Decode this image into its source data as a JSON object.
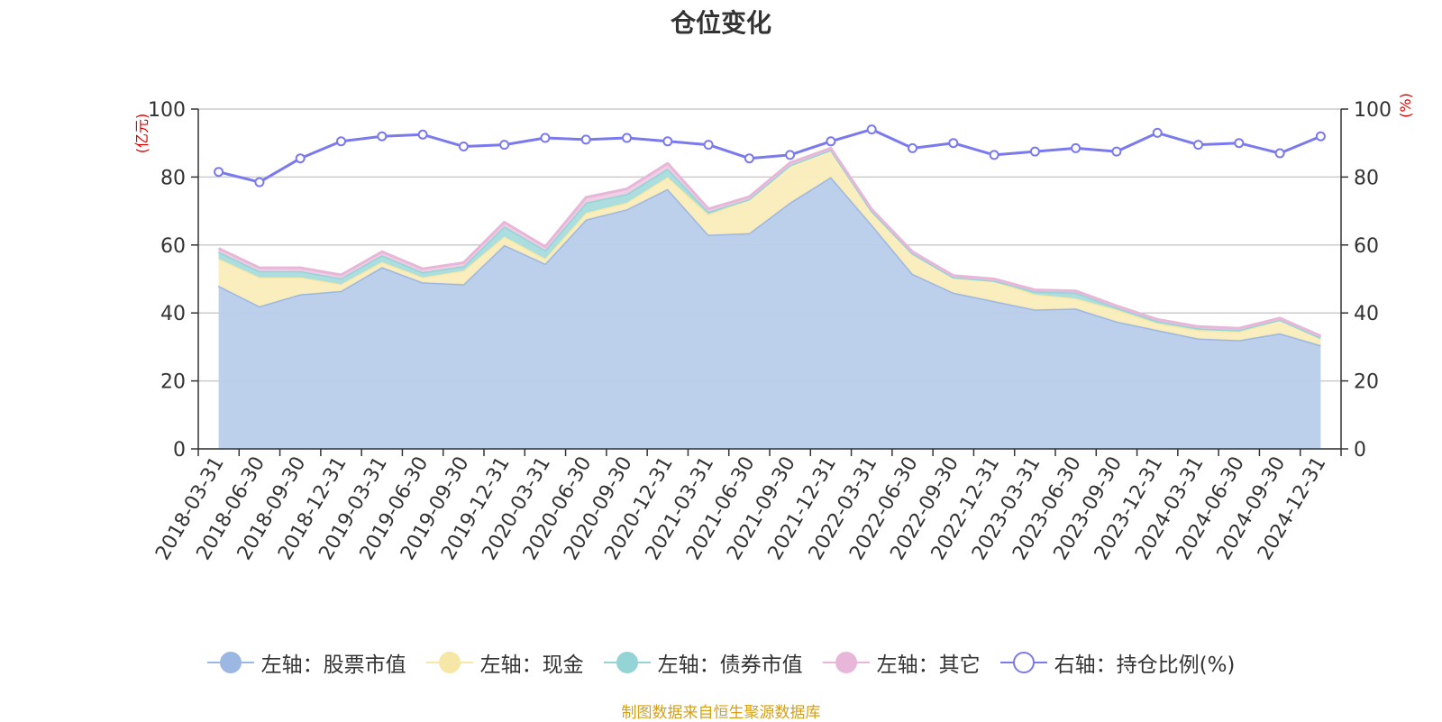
{
  "chart_data": {
    "type": "area",
    "title": "仓位变化",
    "left_axis_unit": "(亿元)",
    "right_axis_unit": "(%)",
    "left_ylim": [
      0,
      100
    ],
    "right_ylim": [
      0,
      100
    ],
    "left_ticks": [
      0,
      20,
      40,
      60,
      80,
      100
    ],
    "right_ticks": [
      0,
      20,
      40,
      60,
      80,
      100
    ],
    "categories": [
      "2018-03-31",
      "2018-06-30",
      "2018-09-30",
      "2018-12-31",
      "2019-03-31",
      "2019-06-30",
      "2019-09-30",
      "2019-12-31",
      "2020-03-31",
      "2020-06-30",
      "2020-09-30",
      "2020-12-31",
      "2021-03-31",
      "2021-06-30",
      "2021-09-30",
      "2021-12-31",
      "2022-03-31",
      "2022-06-30",
      "2022-09-30",
      "2022-12-31",
      "2023-03-31",
      "2023-06-30",
      "2023-09-30",
      "2023-12-31",
      "2024-03-31",
      "2024-06-30",
      "2024-09-30",
      "2024-12-31"
    ],
    "stacked_series": [
      {
        "name": "左轴：股票市值",
        "color": "#9cb7e2",
        "fill": "#b8cdeb",
        "values": [
          48,
          42,
          45.5,
          46.5,
          53.5,
          49,
          48.5,
          60,
          54.5,
          67.5,
          70.5,
          76.5,
          63,
          63.5,
          72.5,
          80,
          66,
          51.5,
          46,
          43.5,
          41,
          41.3,
          37.5,
          35,
          32.5,
          32,
          34,
          30.5
        ]
      },
      {
        "name": "左轴：现金",
        "color": "#f7e7a6",
        "fill": "#fbedbb",
        "values": [
          8,
          8.5,
          5,
          2,
          1.5,
          1.5,
          4,
          2.5,
          1.5,
          2,
          2,
          3.5,
          6,
          10,
          11,
          8,
          4,
          6,
          4.5,
          6,
          4.5,
          3,
          3.5,
          2,
          2.5,
          2.5,
          4,
          2.2
        ]
      },
      {
        "name": "左轴：债券市值",
        "color": "#94d3d6",
        "fill": "#a8dcdd",
        "values": [
          2,
          1.8,
          1.8,
          1.7,
          2,
          1.5,
          1.3,
          3,
          2.5,
          3,
          2.5,
          2.5,
          0.8,
          0,
          0,
          0,
          0,
          0,
          0,
          0,
          0.8,
          1.7,
          0.6,
          0.6,
          0.5,
          0.5,
          0,
          0
        ]
      },
      {
        "name": "左轴：其它",
        "color": "#e8b6d8",
        "fill": "#f0cde4",
        "values": [
          1,
          1,
          1,
          1,
          1,
          1,
          1,
          1.2,
          1,
          1.5,
          1.5,
          1.5,
          0.8,
          0.7,
          0.7,
          0.5,
          0.5,
          0.5,
          0.5,
          0.5,
          0.5,
          0.5,
          0.5,
          0.5,
          0.5,
          0.5,
          0.5,
          0.5
        ]
      }
    ],
    "line_series": {
      "name": "右轴：持仓比例(%)",
      "color": "#7a7aee",
      "axis": "right",
      "values": [
        81.5,
        78.5,
        85.5,
        90.5,
        92,
        92.5,
        89,
        89.5,
        91.5,
        91,
        91.5,
        90.5,
        89.5,
        85.5,
        86.5,
        90.5,
        94,
        88.5,
        90,
        86.5,
        87.5,
        88.5,
        87.5,
        93,
        89.5,
        90,
        87,
        92
      ]
    }
  },
  "source_note": "制图数据来自恒生聚源数据库"
}
